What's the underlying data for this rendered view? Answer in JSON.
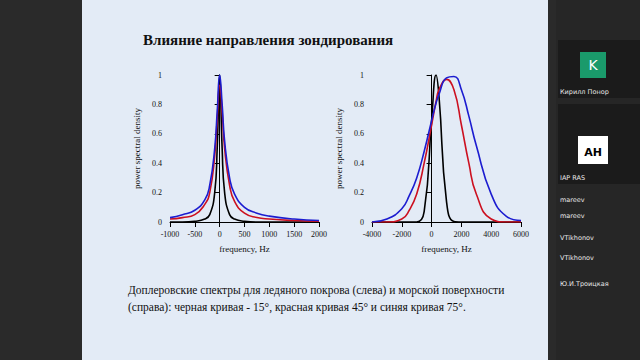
{
  "slide": {
    "title": "Влияние направления зондирования",
    "caption": [
      "Доплеровские спектры для ледяного покрова (слева) и морской поверхности",
      "(справа): черная кривая  - 15°, красная кривая 45° и синяя кривая 75°."
    ]
  },
  "chart_data": [
    {
      "type": "line",
      "x_label": "frequency, Hz",
      "y_label": "power spectral density",
      "x": [
        -1000,
        -750,
        -500,
        -300,
        -200,
        -100,
        -50,
        0,
        50,
        100,
        200,
        300,
        500,
        750,
        1000,
        1500,
        2000
      ],
      "series": [
        {
          "color": "#000000",
          "values": [
            0,
            0,
            0.005,
            0.02,
            0.05,
            0.2,
            0.5,
            1,
            0.5,
            0.2,
            0.05,
            0.02,
            0.005,
            0,
            0,
            0,
            0
          ]
        },
        {
          "color": "#cc1020",
          "values": [
            0.02,
            0.03,
            0.05,
            0.12,
            0.2,
            0.45,
            0.7,
            0.93,
            0.75,
            0.5,
            0.25,
            0.14,
            0.06,
            0.03,
            0.02,
            0.01,
            0.005
          ]
        },
        {
          "color": "#1c1cd0",
          "values": [
            0.03,
            0.05,
            0.08,
            0.15,
            0.25,
            0.5,
            0.75,
            1,
            0.8,
            0.55,
            0.3,
            0.19,
            0.1,
            0.06,
            0.04,
            0.02,
            0.01
          ]
        }
      ],
      "xlim": [
        -1000,
        2000
      ],
      "xticks": [
        -1000,
        -500,
        0,
        500,
        1000,
        1500,
        2000
      ],
      "ylim": [
        0,
        1
      ],
      "yticks": [
        0,
        0.2,
        0.4,
        0.6,
        0.8,
        1
      ],
      "grid": false
    },
    {
      "type": "line",
      "x_label": "frequency, Hz",
      "y_label": "power spectral density",
      "x": [
        -4000,
        -3000,
        -2000,
        -1500,
        -1000,
        -500,
        0,
        300,
        500,
        1000,
        1500,
        2000,
        2500,
        3000,
        4000,
        5000,
        6000
      ],
      "series": [
        {
          "color": "#000000",
          "values": [
            0,
            0,
            0,
            0,
            0,
            0.07,
            0.69,
            1,
            0.85,
            0.14,
            0.003,
            0,
            0,
            0,
            0,
            0,
            0
          ]
        },
        {
          "color": "#cc1020",
          "values": [
            0,
            0,
            0.02,
            0.08,
            0.19,
            0.4,
            0.66,
            0.82,
            0.9,
            0.97,
            0.9,
            0.66,
            0.4,
            0.19,
            0.02,
            0,
            0
          ]
        },
        {
          "color": "#1c1cd0",
          "values": [
            0,
            0.02,
            0.09,
            0.18,
            0.3,
            0.48,
            0.69,
            0.81,
            0.87,
            0.98,
            0.99,
            0.9,
            0.72,
            0.52,
            0.19,
            0.04,
            0.01
          ]
        }
      ],
      "xlim": [
        -4000,
        6000
      ],
      "xticks": [
        -4000,
        -2000,
        0,
        2000,
        4000,
        6000
      ],
      "ylim": [
        0,
        1
      ],
      "yticks": [
        0,
        0.2,
        0.4,
        0.6,
        0.8,
        1
      ],
      "grid": false
    }
  ],
  "sidebar": {
    "avatar": "K",
    "logo": "АН",
    "names": [
      "Кирилл Понор",
      "IAP RAS",
      "mareev",
      "mareev",
      "VTikhonov",
      "VTikhonov",
      "Ю.И.Троицкая"
    ]
  }
}
